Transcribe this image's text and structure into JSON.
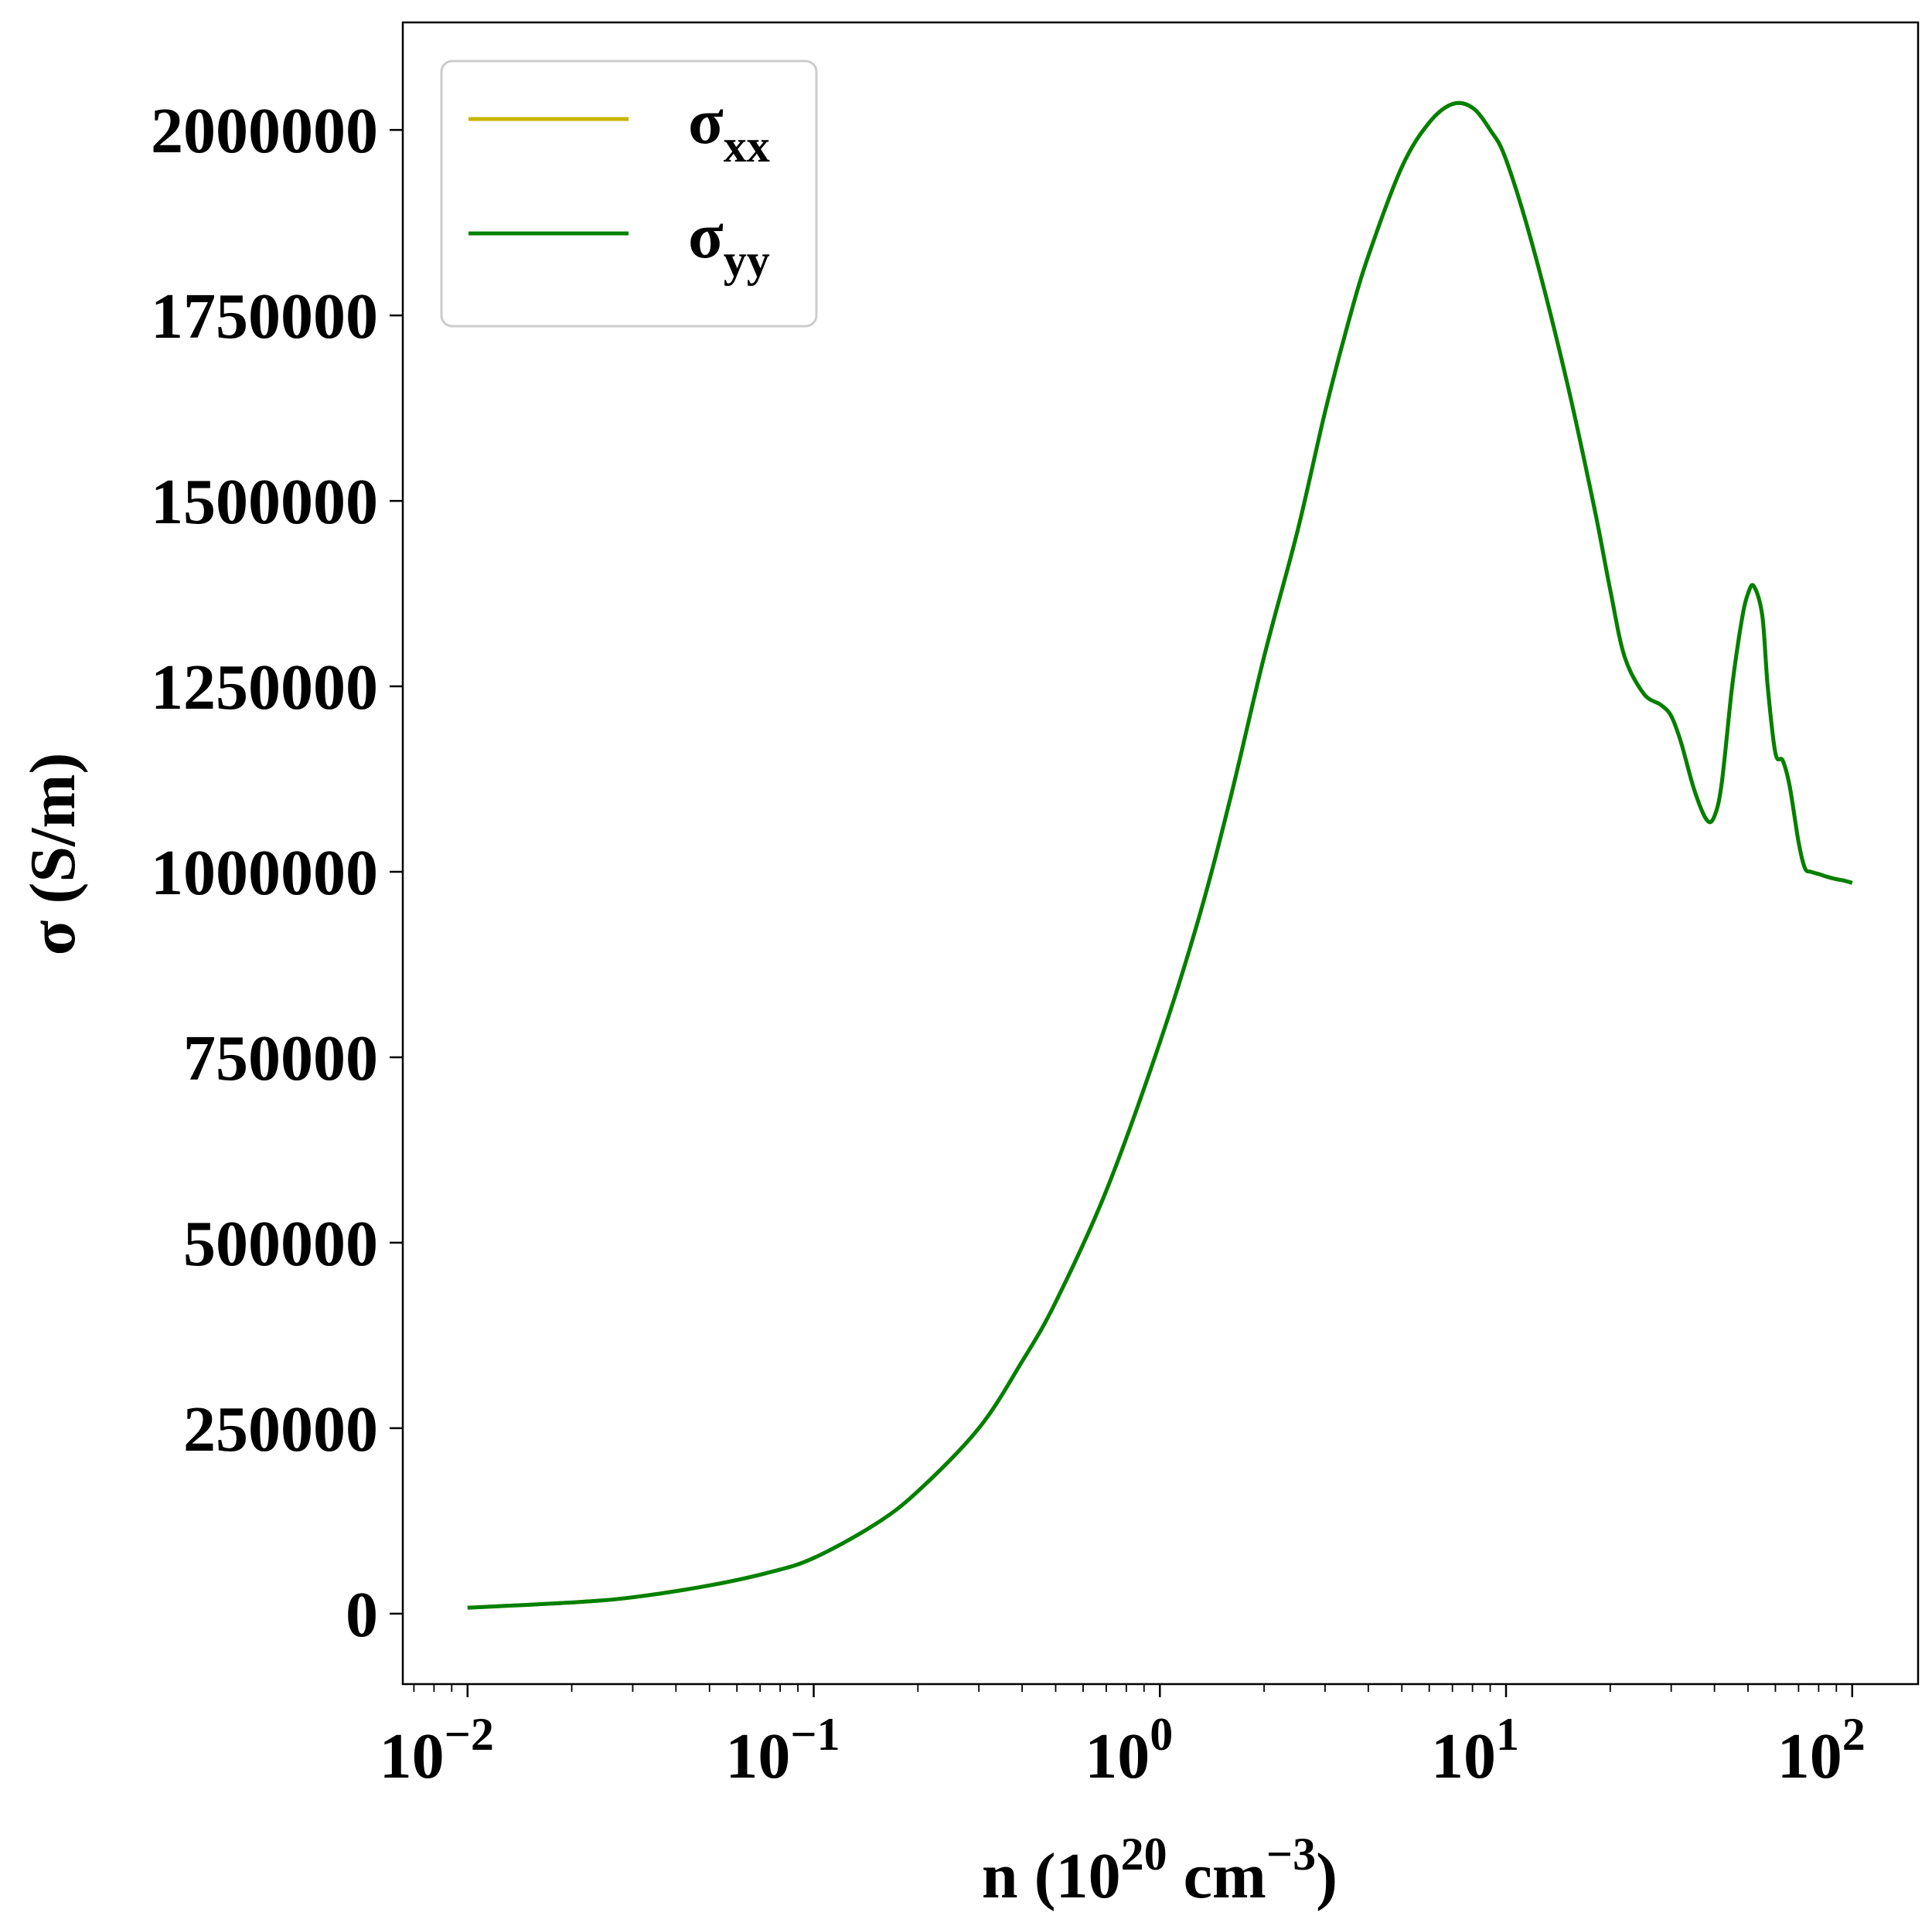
{
  "chart_data": {
    "type": "line",
    "title": "",
    "xlabel": {
      "base": "n (10",
      "exp1": "20",
      "mid": " cm",
      "exp2": "−3",
      "end": ")"
    },
    "ylabel": "σ (S/m)",
    "xscale": "log",
    "xlim": [
      0.0065,
      155
    ],
    "ylim": [
      -95000,
      2145000
    ],
    "x_ticks": [
      {
        "value": 0.01,
        "base": "10",
        "exp": "−2"
      },
      {
        "value": 0.1,
        "base": "10",
        "exp": "−1"
      },
      {
        "value": 1,
        "base": "10",
        "exp": "0"
      },
      {
        "value": 10,
        "base": "10",
        "exp": "1"
      },
      {
        "value": 100,
        "base": "10",
        "exp": "2"
      }
    ],
    "y_ticks": [
      {
        "value": 0,
        "label": "0"
      },
      {
        "value": 250000,
        "label": "250000"
      },
      {
        "value": 500000,
        "label": "500000"
      },
      {
        "value": 750000,
        "label": "750000"
      },
      {
        "value": 1000000,
        "label": "1000000"
      },
      {
        "value": 1250000,
        "label": "1250000"
      },
      {
        "value": 1500000,
        "label": "1500000"
      },
      {
        "value": 1750000,
        "label": "1750000"
      },
      {
        "value": 2000000,
        "label": "2000000"
      }
    ],
    "grid": false,
    "legend_position": "top-left",
    "series": [
      {
        "name": "σ",
        "subscript": "xx",
        "color": "#c8b400",
        "x": [
          0.01,
          0.02,
          0.03,
          0.05,
          0.075,
          0.1,
          0.15,
          0.2,
          0.3,
          0.4,
          0.5,
          0.7,
          1,
          1.3,
          1.6,
          2,
          2.5,
          3,
          3.5,
          4,
          5,
          6,
          7,
          8,
          9,
          10,
          12,
          15,
          18,
          20,
          22,
          25,
          28,
          30,
          32,
          35,
          38,
          40,
          42,
          45,
          48,
          50,
          52,
          55,
          57,
          60,
          63,
          66,
          70,
          73,
          76,
          80,
          85,
          90,
          95,
          100
        ],
        "y": [
          8000,
          15000,
          22000,
          38000,
          56000,
          75000,
          120000,
          165000,
          250000,
          340000,
          420000,
          570000,
          770000,
          940000,
          1100000,
          1290000,
          1460000,
          1620000,
          1740000,
          1830000,
          1950000,
          2010000,
          2035000,
          2030000,
          2000000,
          1960000,
          1840000,
          1660000,
          1490000,
          1380000,
          1290000,
          1240000,
          1225000,
          1210000,
          1175000,
          1110000,
          1070000,
          1075000,
          1120000,
          1250000,
          1340000,
          1375000,
          1385000,
          1345000,
          1250000,
          1160000,
          1150000,
          1115000,
          1040000,
          1005000,
          1000000,
          997000,
          993000,
          990000,
          988000,
          985000
        ]
      },
      {
        "name": "σ",
        "subscript": "yy",
        "color": "#008000",
        "x": [
          0.01,
          0.02,
          0.03,
          0.05,
          0.075,
          0.1,
          0.15,
          0.2,
          0.3,
          0.4,
          0.5,
          0.7,
          1,
          1.3,
          1.6,
          2,
          2.5,
          3,
          3.5,
          4,
          5,
          6,
          7,
          8,
          9,
          10,
          12,
          15,
          18,
          20,
          22,
          25,
          28,
          30,
          32,
          35,
          38,
          40,
          42,
          45,
          48,
          50,
          52,
          55,
          57,
          60,
          63,
          66,
          70,
          73,
          76,
          80,
          85,
          90,
          95,
          100
        ],
        "y": [
          8000,
          15000,
          22000,
          38000,
          56000,
          75000,
          120000,
          165000,
          250000,
          340000,
          420000,
          570000,
          770000,
          940000,
          1100000,
          1290000,
          1460000,
          1620000,
          1740000,
          1830000,
          1950000,
          2010000,
          2035000,
          2030000,
          2000000,
          1960000,
          1840000,
          1660000,
          1490000,
          1380000,
          1290000,
          1240000,
          1225000,
          1210000,
          1175000,
          1110000,
          1070000,
          1075000,
          1120000,
          1250000,
          1340000,
          1375000,
          1385000,
          1345000,
          1250000,
          1160000,
          1150000,
          1115000,
          1040000,
          1005000,
          1000000,
          997000,
          993000,
          990000,
          988000,
          985000
        ]
      }
    ]
  }
}
